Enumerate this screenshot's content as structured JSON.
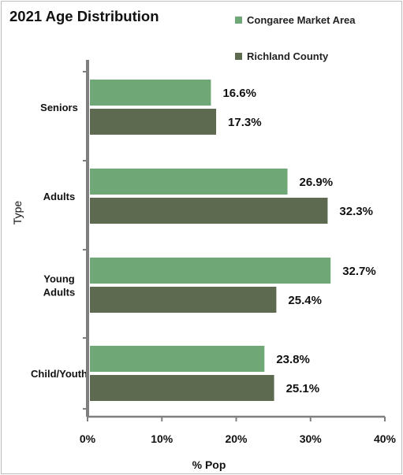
{
  "chart_data": {
    "type": "bar",
    "orientation": "horizontal",
    "title": "2021 Age Distribution",
    "xlabel": "% Pop",
    "ylabel": "Type",
    "categories": [
      [
        "Seniors"
      ],
      [
        "Adults"
      ],
      [
        "Young",
        "Adults"
      ],
      [
        "Child/Youth"
      ]
    ],
    "series": [
      {
        "name": "Congaree Market Area",
        "color": "#6fa876",
        "values": [
          16.6,
          26.9,
          32.7,
          23.8
        ]
      },
      {
        "name": "Richland County",
        "color": "#5e6a4f",
        "values": [
          17.3,
          32.3,
          25.4,
          25.1
        ]
      }
    ],
    "xlim": [
      0,
      40
    ],
    "xticks": [
      0,
      10,
      20,
      30,
      40
    ],
    "tick_format": "%",
    "value_format": "%",
    "legend_position": "top-right",
    "grid": false
  }
}
